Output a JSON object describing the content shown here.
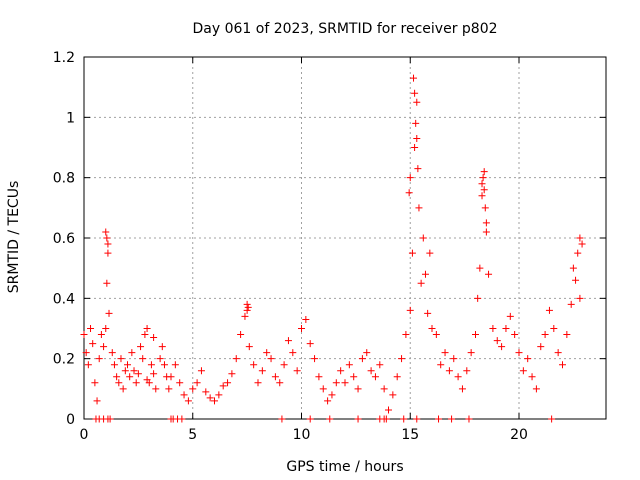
{
  "chart_data": {
    "type": "scatter",
    "title": "Day 061 of 2023, SRMTID for receiver p802",
    "xlabel": "GPS time / hours",
    "ylabel": "SRMTID / TECUs",
    "xlim": [
      0,
      24
    ],
    "ylim": [
      0,
      1.2
    ],
    "xticks": [
      0,
      5,
      10,
      15,
      20
    ],
    "xtick_labels": [
      "0",
      "5",
      "10",
      "15",
      "20"
    ],
    "yticks": [
      0,
      0.2,
      0.4,
      0.6,
      0.8,
      1.0,
      1.2
    ],
    "ytick_labels": [
      "0",
      "0.2",
      "0.4",
      "0.6",
      "0.8",
      "1",
      "1.2"
    ],
    "grid": true,
    "marker": "+",
    "series": [
      {
        "name": "SRMTID",
        "color": "#ff0000",
        "x": [
          0.0,
          0.1,
          0.2,
          0.3,
          0.4,
          0.5,
          0.6,
          0.7,
          0.8,
          0.9,
          1.0,
          1.05,
          1.1,
          1.15,
          1.3,
          1.4,
          1.5,
          1.6,
          1.7,
          1.8,
          1.9,
          2.0,
          2.1,
          2.2,
          2.3,
          2.4,
          2.5,
          2.6,
          2.7,
          2.8,
          2.9,
          3.0,
          3.1,
          3.2,
          3.3,
          3.5,
          3.6,
          3.7,
          3.8,
          3.9,
          4.0,
          4.2,
          4.4,
          4.6,
          4.8,
          5.0,
          5.2,
          5.4,
          5.6,
          5.8,
          6.0,
          6.2,
          6.4,
          6.6,
          6.8,
          7.0,
          7.2,
          7.4,
          7.5,
          7.6,
          7.8,
          8.0,
          8.2,
          8.4,
          8.6,
          8.8,
          9.0,
          9.2,
          9.4,
          9.6,
          9.8,
          10.0,
          10.2,
          10.4,
          10.6,
          10.8,
          11.0,
          11.2,
          11.4,
          11.6,
          11.8,
          12.0,
          12.2,
          12.4,
          12.6,
          12.8,
          13.0,
          13.2,
          13.4,
          13.6,
          13.8,
          14.0,
          14.2,
          14.4,
          14.6,
          14.8,
          15.0,
          15.1,
          15.2,
          15.3,
          15.4,
          15.5,
          15.6,
          15.7,
          15.8,
          15.9,
          16.0,
          16.2,
          16.4,
          16.6,
          16.8,
          17.0,
          17.2,
          17.4,
          17.6,
          17.8,
          18.0,
          18.1,
          18.2,
          18.3,
          18.4,
          18.5,
          18.6,
          18.8,
          19.0,
          19.2,
          19.4,
          19.6,
          19.8,
          20.0,
          20.2,
          20.4,
          20.6,
          20.8,
          21.0,
          21.2,
          21.4,
          21.6,
          21.8,
          22.0,
          22.2,
          22.4,
          22.5,
          22.6,
          22.7,
          22.8,
          0.55,
          0.7,
          0.9,
          1.1,
          1.2,
          4.0,
          4.1,
          4.3,
          4.5,
          9.1,
          10.4,
          11.3,
          12.6,
          13.6,
          13.8,
          13.9,
          14.7,
          15.3,
          16.3,
          16.9,
          17.7,
          21.5,
          1.0,
          1.05,
          1.1,
          15.15,
          15.2,
          15.25,
          15.3,
          15.35,
          15.0,
          14.95,
          18.35,
          18.4,
          18.45,
          18.3,
          18.5,
          22.8,
          22.9,
          7.5,
          7.55,
          2.9,
          3.2
        ],
        "y": [
          0.28,
          0.22,
          0.18,
          0.3,
          0.25,
          0.12,
          0.06,
          0.2,
          0.28,
          0.24,
          0.3,
          0.45,
          0.58,
          0.35,
          0.22,
          0.18,
          0.14,
          0.12,
          0.2,
          0.1,
          0.16,
          0.18,
          0.14,
          0.22,
          0.16,
          0.12,
          0.15,
          0.24,
          0.2,
          0.28,
          0.13,
          0.12,
          0.18,
          0.15,
          0.1,
          0.2,
          0.24,
          0.18,
          0.14,
          0.1,
          0.14,
          0.18,
          0.12,
          0.08,
          0.06,
          0.1,
          0.12,
          0.16,
          0.09,
          0.07,
          0.06,
          0.08,
          0.11,
          0.12,
          0.15,
          0.2,
          0.28,
          0.34,
          0.36,
          0.24,
          0.18,
          0.12,
          0.16,
          0.22,
          0.2,
          0.14,
          0.12,
          0.18,
          0.26,
          0.22,
          0.16,
          0.3,
          0.33,
          0.25,
          0.2,
          0.14,
          0.1,
          0.06,
          0.08,
          0.12,
          0.16,
          0.12,
          0.18,
          0.14,
          0.1,
          0.2,
          0.22,
          0.16,
          0.14,
          0.18,
          0.1,
          0.03,
          0.08,
          0.14,
          0.2,
          0.28,
          0.36,
          0.55,
          0.9,
          1.05,
          0.7,
          0.45,
          0.6,
          0.48,
          0.35,
          0.55,
          0.3,
          0.28,
          0.18,
          0.22,
          0.16,
          0.2,
          0.14,
          0.1,
          0.16,
          0.22,
          0.28,
          0.4,
          0.5,
          0.78,
          0.82,
          0.62,
          0.48,
          0.3,
          0.26,
          0.24,
          0.3,
          0.34,
          0.28,
          0.22,
          0.16,
          0.2,
          0.14,
          0.1,
          0.24,
          0.28,
          0.36,
          0.3,
          0.22,
          0.18,
          0.28,
          0.38,
          0.5,
          0.46,
          0.55,
          0.4,
          0.0,
          0.0,
          0.0,
          0.0,
          0.0,
          0.0,
          0.0,
          0.0,
          0.0,
          0.0,
          0.0,
          0.0,
          0.0,
          0.0,
          0.0,
          0.0,
          0.0,
          0.0,
          0.0,
          0.0,
          0.0,
          0.0,
          0.62,
          0.6,
          0.55,
          1.13,
          1.08,
          0.98,
          0.93,
          0.83,
          0.8,
          0.75,
          0.8,
          0.76,
          0.7,
          0.74,
          0.65,
          0.6,
          0.58,
          0.38,
          0.37,
          0.3,
          0.27
        ]
      }
    ]
  }
}
